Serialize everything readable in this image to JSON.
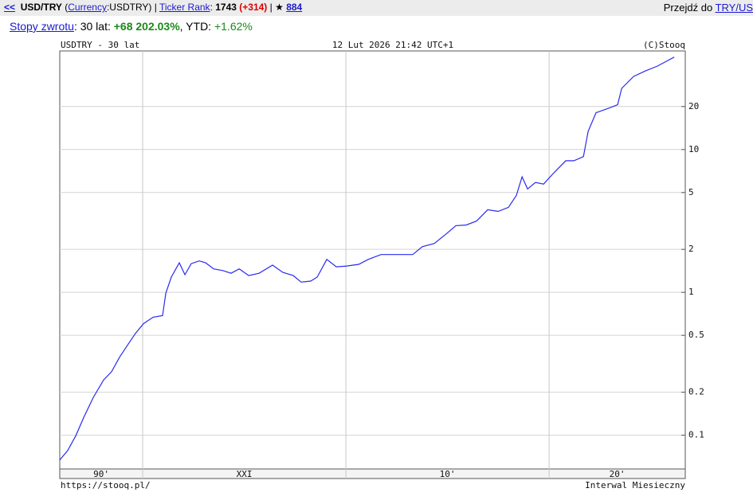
{
  "header": {
    "back": "<<",
    "segments": [
      "USD/TRY",
      " (",
      "Currency",
      ":USDTRY)",
      " | ",
      "Ticker Rank",
      ": ",
      "1743",
      " ",
      "(+314)",
      " | ★ ",
      "884"
    ],
    "goto_label": "Przejdź do ",
    "goto_link": "TRY/US"
  },
  "returns": {
    "link": "Stopy zwrotu",
    "period_label": ": 30 lat: ",
    "period_value": "+68 202.03%",
    "ytd_label": ", YTD: ",
    "ytd_value": "+1.62%"
  },
  "chart_data": {
    "type": "line",
    "title": "USDTRY - 30 lat",
    "timestamp": "12 Lut 2026 21:42 UTC+1",
    "credit": "(C)Stooq",
    "footer_left": "https://stooq.pl/",
    "footer_right": "Interwal Miesieczny",
    "log_scale": true,
    "grid": true,
    "xlim": [
      1995.92,
      2026.7
    ],
    "ylim": [
      0.058,
      49
    ],
    "yticks": [
      0.1,
      0.2,
      0.5,
      1,
      2,
      5,
      10,
      20
    ],
    "xticks": [
      2000,
      2010,
      2020
    ],
    "xbands": [
      {
        "label": "90'",
        "from": 1995.92,
        "to": 2000
      },
      {
        "label": "XXI",
        "from": 2000,
        "to": 2010
      },
      {
        "label": "10'",
        "from": 2010,
        "to": 2020
      },
      {
        "label": "20'",
        "from": 2020,
        "to": 2026.7
      }
    ],
    "series": [
      {
        "name": "USDTRY",
        "color": "#2a2af0",
        "x": [
          1995.92,
          1996.31,
          1996.71,
          1997.1,
          1997.57,
          1998.08,
          1998.47,
          1998.86,
          1999.25,
          1999.65,
          2000.04,
          2000.51,
          2000.98,
          2001.14,
          2001.41,
          2001.8,
          2002.08,
          2002.39,
          2002.78,
          2003.1,
          2003.49,
          2003.96,
          2004.35,
          2004.75,
          2005.22,
          2005.73,
          2006.39,
          2006.9,
          2007.41,
          2007.8,
          2008.27,
          2008.59,
          2009.06,
          2009.53,
          2010.04,
          2010.63,
          2011.1,
          2011.73,
          2012.27,
          2012.78,
          2013.29,
          2013.76,
          2014.35,
          2014.94,
          2015.41,
          2015.92,
          2016.43,
          2016.98,
          2017.49,
          2018.0,
          2018.39,
          2018.67,
          2018.94,
          2019.33,
          2019.73,
          2020.24,
          2020.82,
          2021.22,
          2021.69,
          2021.92,
          2022.31,
          2022.86,
          2023.37,
          2023.57,
          2024.16,
          2024.75,
          2025.33,
          2025.84,
          2026.16
        ],
        "values": [
          0.067,
          0.078,
          0.099,
          0.133,
          0.184,
          0.244,
          0.278,
          0.351,
          0.426,
          0.517,
          0.604,
          0.67,
          0.687,
          0.987,
          1.28,
          1.61,
          1.33,
          1.59,
          1.66,
          1.61,
          1.46,
          1.42,
          1.36,
          1.46,
          1.31,
          1.36,
          1.55,
          1.38,
          1.31,
          1.18,
          1.2,
          1.28,
          1.7,
          1.51,
          1.53,
          1.57,
          1.7,
          1.84,
          1.84,
          1.84,
          1.84,
          2.09,
          2.2,
          2.57,
          2.93,
          2.96,
          3.16,
          3.79,
          3.69,
          3.94,
          4.78,
          6.44,
          5.3,
          5.88,
          5.73,
          6.88,
          8.35,
          8.35,
          8.92,
          13.4,
          18.1,
          19.3,
          20.6,
          26.8,
          32.5,
          35.6,
          38.4,
          42.0,
          44.4
        ]
      }
    ]
  }
}
